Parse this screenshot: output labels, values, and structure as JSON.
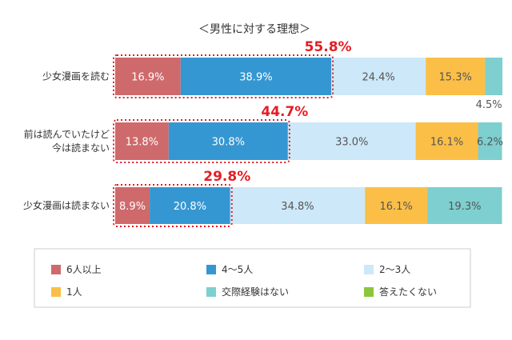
{
  "chart_data": {
    "type": "bar",
    "orientation": "horizontal",
    "stacked": true,
    "percent": true,
    "title": "＜男性に対する理想＞",
    "categories": [
      [
        "少女漫画を読む"
      ],
      [
        "前は読んでいたけど",
        "今は読まない"
      ],
      [
        "少女漫画は読まない"
      ]
    ],
    "series": [
      {
        "name": "6人以上",
        "color": "#cf6a6c",
        "values": [
          16.9,
          13.8,
          8.9
        ]
      },
      {
        "name": "4〜5人",
        "color": "#3597d2",
        "values": [
          38.9,
          30.8,
          20.8
        ]
      },
      {
        "name": "2〜3人",
        "color": "#cde8f8",
        "values": [
          24.4,
          33.0,
          34.8
        ]
      },
      {
        "name": "1人",
        "color": "#fbbf47",
        "values": [
          15.3,
          16.1,
          16.1
        ]
      },
      {
        "name": "交際経験はない",
        "color": "#7ecfcf",
        "values": [
          4.5,
          6.2,
          19.3
        ]
      },
      {
        "name": "答えたくない",
        "color": "#8cc63e",
        "values": [
          0,
          0,
          0
        ]
      }
    ],
    "highlight_totals": [
      "55.8%",
      "44.7%",
      "29.8%"
    ],
    "legend_position": "bottom",
    "grid": false
  }
}
